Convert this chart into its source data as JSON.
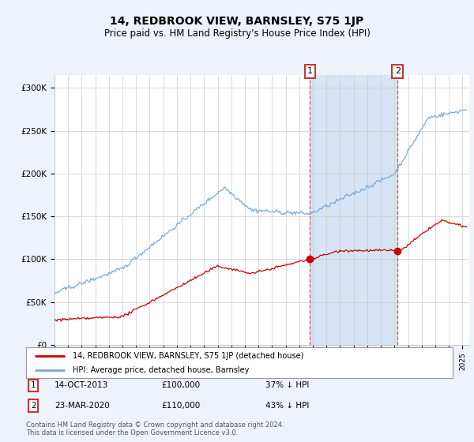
{
  "title": "14, REDBROOK VIEW, BARNSLEY, S75 1JP",
  "subtitle": "Price paid vs. HM Land Registry's House Price Index (HPI)",
  "title_fontsize": 10,
  "subtitle_fontsize": 8.5,
  "ylabel_ticks": [
    "£0",
    "£50K",
    "£100K",
    "£150K",
    "£200K",
    "£250K",
    "£300K"
  ],
  "ytick_values": [
    0,
    50000,
    100000,
    150000,
    200000,
    250000,
    300000
  ],
  "ylim": [
    0,
    315000
  ],
  "xlim_start": 1995.0,
  "xlim_end": 2025.5,
  "background_color": "#eef2fa",
  "plot_bg_color": "#ffffff",
  "hpi_color": "#7aaad4",
  "price_color": "#cc0000",
  "marker1_x": 2013.79,
  "marker1_y": 100000,
  "marker2_x": 2020.23,
  "marker2_y": 110000,
  "shade_color": "#d6e4f5",
  "legend_label_red": "14, REDBROOK VIEW, BARNSLEY, S75 1JP (detached house)",
  "legend_label_blue": "HPI: Average price, detached house, Barnsley",
  "annotation1_label": "1",
  "annotation2_label": "2",
  "ann1_date": "14-OCT-2013",
  "ann1_price": "£100,000",
  "ann1_hpi": "37% ↓ HPI",
  "ann2_date": "23-MAR-2020",
  "ann2_price": "£110,000",
  "ann2_hpi": "43% ↓ HPI",
  "footer": "Contains HM Land Registry data © Crown copyright and database right 2024.\nThis data is licensed under the Open Government Licence v3.0."
}
